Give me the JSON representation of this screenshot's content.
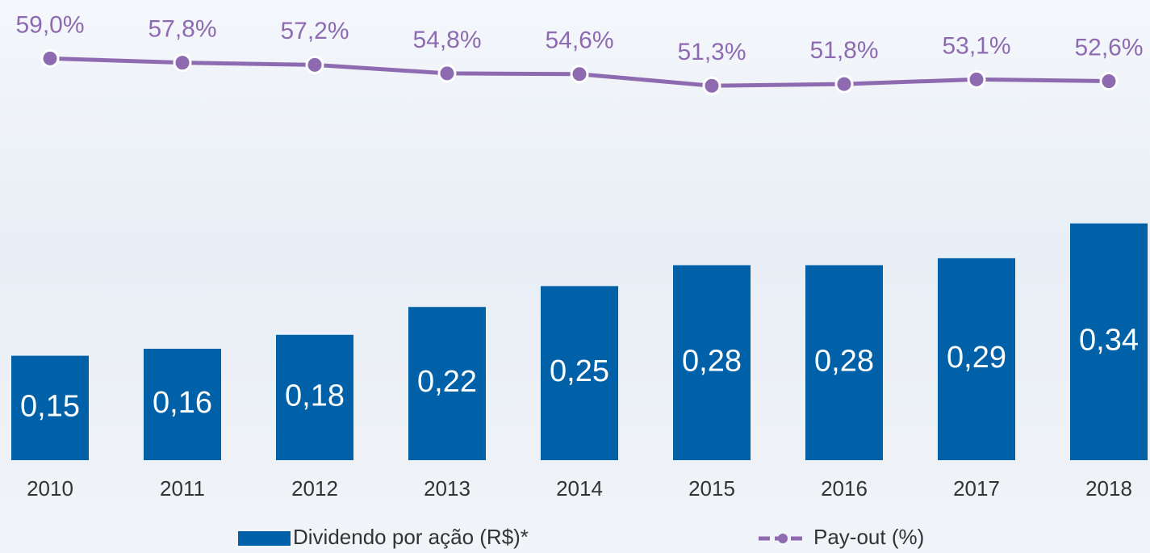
{
  "chart_data": {
    "type": "bar",
    "categories": [
      "2010",
      "2011",
      "2012",
      "2013",
      "2014",
      "2015",
      "2016",
      "2017",
      "2018"
    ],
    "series": [
      {
        "name": "Dividendo por ação (R$)*",
        "type": "bar",
        "color": "#0061a8",
        "values": [
          0.15,
          0.16,
          0.18,
          0.22,
          0.25,
          0.28,
          0.28,
          0.29,
          0.34
        ],
        "value_labels": [
          "0,15",
          "0,16",
          "0,18",
          "0,22",
          "0,25",
          "0,28",
          "0,28",
          "0,29",
          "0,34"
        ]
      },
      {
        "name": "Pay-out (%)",
        "type": "line",
        "axis": "y2",
        "color": "#8e6bb1",
        "values": [
          59.0,
          57.8,
          57.2,
          54.8,
          54.6,
          51.3,
          51.8,
          53.1,
          52.6
        ],
        "value_labels": [
          "59,0%",
          "57,8%",
          "57,2%",
          "54,8%",
          "54,6%",
          "51,3%",
          "51,8%",
          "53,1%",
          "52,6%"
        ]
      }
    ],
    "ylim": [
      0,
      0.4
    ],
    "y2lim": [
      40,
      65
    ],
    "grid": false
  }
}
